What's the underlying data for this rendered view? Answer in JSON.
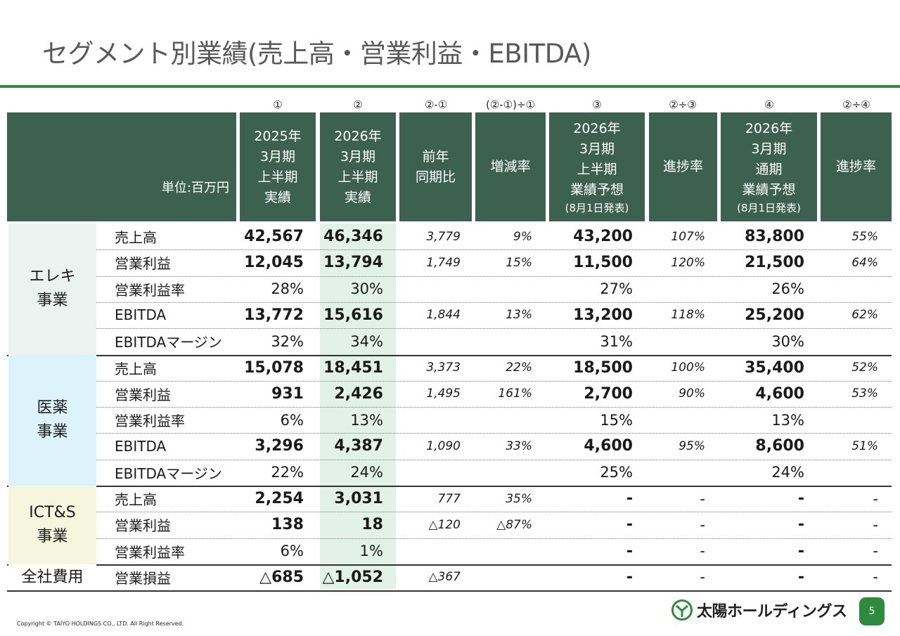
{
  "title": "セグメント別業績(売上高・営業利益・EBITDA)",
  "column_markers": [
    "①",
    "②",
    "②-①",
    "(②-①)÷①",
    "③",
    "②÷③",
    "④",
    "②÷④"
  ],
  "headers": {
    "unit": "単位:百万円",
    "c1": [
      "2025年",
      "3月期",
      "上半期",
      "実績"
    ],
    "c2": [
      "2026年",
      "3月期",
      "上半期",
      "実績"
    ],
    "c3": [
      "前年",
      "同期比"
    ],
    "c4": [
      "増減率"
    ],
    "c5": [
      "2026年",
      "3月期",
      "上半期",
      "業績予想"
    ],
    "c5_sub": "(8月1日発表)",
    "c6": [
      "進捗率"
    ],
    "c7": [
      "2026年",
      "3月期",
      "通期",
      "業績予想"
    ],
    "c7_sub": "(8月1日発表)",
    "c8": [
      "進捗率"
    ]
  },
  "segments": [
    {
      "name": [
        "エレキ",
        "事業"
      ],
      "color": "#eaf3ef",
      "rows": [
        [
          "売上高",
          "42,567",
          "46,346",
          "3,779",
          "9%",
          "43,200",
          "107%",
          "83,800",
          "55%"
        ],
        [
          "営業利益",
          "12,045",
          "13,794",
          "1,749",
          "15%",
          "11,500",
          "120%",
          "21,500",
          "64%"
        ],
        [
          "営業利益率",
          "28%",
          "30%",
          "",
          "",
          "27%",
          "",
          "26%",
          ""
        ],
        [
          "EBITDA",
          "13,772",
          "15,616",
          "1,844",
          "13%",
          "13,200",
          "118%",
          "25,200",
          "62%"
        ],
        [
          "EBITDAマージン",
          "32%",
          "34%",
          "",
          "",
          "31%",
          "",
          "30%",
          ""
        ]
      ]
    },
    {
      "name": [
        "医薬",
        "事業"
      ],
      "color": "#dcf3fb",
      "rows": [
        [
          "売上高",
          "15,078",
          "18,451",
          "3,373",
          "22%",
          "18,500",
          "100%",
          "35,400",
          "52%"
        ],
        [
          "営業利益",
          "931",
          "2,426",
          "1,495",
          "161%",
          "2,700",
          "90%",
          "4,600",
          "53%"
        ],
        [
          "営業利益率",
          "6%",
          "13%",
          "",
          "",
          "15%",
          "",
          "13%",
          ""
        ],
        [
          "EBITDA",
          "3,296",
          "4,387",
          "1,090",
          "33%",
          "4,600",
          "95%",
          "8,600",
          "51%"
        ],
        [
          "EBITDAマージン",
          "22%",
          "24%",
          "",
          "",
          "25%",
          "",
          "24%",
          ""
        ]
      ]
    },
    {
      "name": [
        "ICT&S",
        "事業"
      ],
      "color": "#f6f5de",
      "rows": [
        [
          "売上高",
          "2,254",
          "3,031",
          "777",
          "35%",
          "-",
          "-",
          "-",
          "-"
        ],
        [
          "営業利益",
          "138",
          "18",
          "△120",
          "△87%",
          "-",
          "-",
          "-",
          "-"
        ],
        [
          "営業利益率",
          "6%",
          "1%",
          "",
          "",
          "-",
          "-",
          "-",
          "-"
        ]
      ]
    },
    {
      "name": [
        "全社費用"
      ],
      "color": "#ffffff",
      "rows": [
        [
          "営業損益",
          "△685",
          "△1,052",
          "△367",
          "",
          "-",
          "-",
          "-",
          "-"
        ]
      ]
    }
  ],
  "footer": {
    "copyright": "Copyright © TAIYO HOLDINGS CO., LTD.  All Right Reserved.",
    "logo_text": "太陽ホールディングス",
    "page": "5"
  }
}
